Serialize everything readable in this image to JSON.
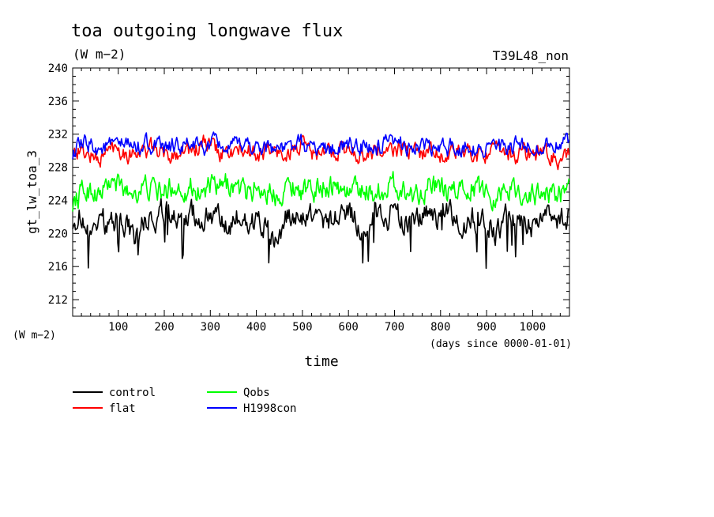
{
  "chart_data": {
    "type": "line",
    "title": "toa outgoing longwave flux",
    "units": "(W m−2)",
    "run_label": "T39L48_non",
    "ylabel": "gt_lw_toa_3",
    "y_units_label": "(W m−2)",
    "xlabel": "time",
    "x_units_label": "(days since 0000-01-01)",
    "xlim": [
      1,
      1080
    ],
    "ylim": [
      210,
      240
    ],
    "x_ticks": [
      100,
      200,
      300,
      400,
      500,
      600,
      700,
      800,
      900,
      1000
    ],
    "y_ticks": [
      212,
      216,
      220,
      224,
      228,
      232,
      236,
      240
    ],
    "grid": false,
    "legend_position": "bottom-left",
    "series": [
      {
        "name": "control",
        "color": "#000000",
        "base": 221.5,
        "low": 215.8,
        "high": 225.0,
        "x": [
          1,
          20,
          40,
          60,
          80,
          100,
          120,
          140,
          160,
          180,
          200,
          220,
          240,
          260,
          280,
          300,
          320,
          340,
          360,
          380,
          400,
          420,
          440,
          460,
          480,
          500,
          520,
          540,
          560,
          580,
          600,
          620,
          640,
          660,
          680,
          700,
          720,
          740,
          760,
          780,
          800,
          820,
          840,
          860,
          880,
          900,
          920,
          940,
          960,
          980,
          1000,
          1020,
          1040,
          1060,
          1080
        ],
        "values": [
          221.8,
          222.3,
          219.5,
          221.6,
          221.2,
          222.1,
          220.9,
          219.2,
          222.0,
          221.5,
          222.8,
          221.9,
          220.4,
          222.6,
          221.3,
          222.9,
          221.2,
          220.1,
          222.2,
          220.8,
          221.6,
          220.7,
          218.9,
          221.4,
          222.3,
          221.8,
          222.6,
          221.1,
          222.0,
          221.4,
          222.9,
          221.6,
          220.4,
          222.5,
          221.8,
          222.8,
          221.2,
          220.6,
          221.9,
          222.7,
          221.4,
          222.3,
          220.9,
          221.7,
          222.0,
          221.3,
          220.2,
          221.9,
          222.2,
          221.6,
          220.8,
          222.1,
          222.6,
          221.2,
          222.4
        ]
      },
      {
        "name": "flat",
        "color": "#ff0000",
        "base": 229.8,
        "low": 226.8,
        "high": 233.2,
        "x": [
          1,
          20,
          40,
          60,
          80,
          100,
          120,
          140,
          160,
          180,
          200,
          220,
          240,
          260,
          280,
          300,
          320,
          340,
          360,
          380,
          400,
          420,
          440,
          460,
          480,
          500,
          520,
          540,
          560,
          580,
          600,
          620,
          640,
          660,
          680,
          700,
          720,
          740,
          760,
          780,
          800,
          820,
          840,
          860,
          880,
          900,
          920,
          940,
          960,
          980,
          1000,
          1020,
          1040,
          1060,
          1080
        ],
        "values": [
          230.1,
          229.9,
          229.4,
          228.9,
          230.2,
          230.5,
          229.6,
          230.1,
          229.7,
          230.4,
          229.3,
          229.6,
          230.3,
          229.8,
          230.6,
          230.9,
          229.5,
          229.9,
          229.7,
          230.0,
          229.4,
          230.2,
          229.7,
          229.6,
          230.1,
          230.5,
          229.8,
          229.3,
          229.9,
          230.3,
          229.9,
          229.6,
          229.7,
          230.1,
          229.5,
          230.0,
          230.4,
          229.7,
          229.9,
          230.2,
          229.6,
          229.4,
          230.0,
          229.7,
          229.5,
          229.9,
          229.6,
          230.1,
          229.4,
          229.8,
          229.5,
          229.9,
          229.3,
          228.9,
          229.1
        ]
      },
      {
        "name": "Qobs",
        "color": "#00ff00",
        "base": 225.2,
        "low": 220.3,
        "high": 228.8,
        "x": [
          1,
          20,
          40,
          60,
          80,
          100,
          120,
          140,
          160,
          180,
          200,
          220,
          240,
          260,
          280,
          300,
          320,
          340,
          360,
          380,
          400,
          420,
          440,
          460,
          480,
          500,
          520,
          540,
          560,
          580,
          600,
          620,
          640,
          660,
          680,
          700,
          720,
          740,
          760,
          780,
          800,
          820,
          840,
          860,
          880,
          900,
          920,
          940,
          960,
          980,
          1000,
          1020,
          1040,
          1060,
          1080
        ],
        "values": [
          223.8,
          224.9,
          225.4,
          224.6,
          226.1,
          225.8,
          224.9,
          225.3,
          225.6,
          225.1,
          224.8,
          225.9,
          225.3,
          225.7,
          224.9,
          225.6,
          225.2,
          226.0,
          225.4,
          224.8,
          225.7,
          225.1,
          224.7,
          225.5,
          225.9,
          225.3,
          224.9,
          225.8,
          226.1,
          225.4,
          225.0,
          225.6,
          225.3,
          224.8,
          225.5,
          225.9,
          225.2,
          224.7,
          225.4,
          225.8,
          225.1,
          224.6,
          225.3,
          225.9,
          225.4,
          225.0,
          224.5,
          225.6,
          225.2,
          224.9,
          224.6,
          225.1,
          224.7,
          224.9,
          225.0
        ]
      },
      {
        "name": "H1998con",
        "color": "#0000ff",
        "base": 230.4,
        "low": 226.9,
        "high": 233.2,
        "x": [
          1,
          20,
          40,
          60,
          80,
          100,
          120,
          140,
          160,
          180,
          200,
          220,
          240,
          260,
          280,
          300,
          320,
          340,
          360,
          380,
          400,
          420,
          440,
          460,
          480,
          500,
          520,
          540,
          560,
          580,
          600,
          620,
          640,
          660,
          680,
          700,
          720,
          740,
          760,
          780,
          800,
          820,
          840,
          860,
          880,
          900,
          920,
          940,
          960,
          980,
          1000,
          1020,
          1040,
          1060,
          1080
        ],
        "values": [
          229.8,
          230.5,
          230.9,
          230.2,
          230.6,
          230.4,
          230.8,
          230.3,
          231.1,
          230.5,
          230.0,
          230.7,
          230.4,
          230.9,
          230.2,
          230.6,
          230.8,
          230.1,
          230.5,
          230.9,
          230.3,
          230.7,
          230.4,
          230.1,
          230.6,
          230.8,
          230.2,
          230.5,
          230.0,
          230.6,
          230.3,
          230.8,
          230.4,
          230.1,
          230.7,
          230.5,
          230.9,
          230.3,
          230.6,
          230.2,
          230.0,
          230.5,
          230.3,
          230.8,
          230.1,
          230.6,
          230.4,
          229.9,
          230.5,
          230.3,
          230.7,
          230.4,
          230.9,
          230.6,
          230.8
        ]
      }
    ]
  }
}
